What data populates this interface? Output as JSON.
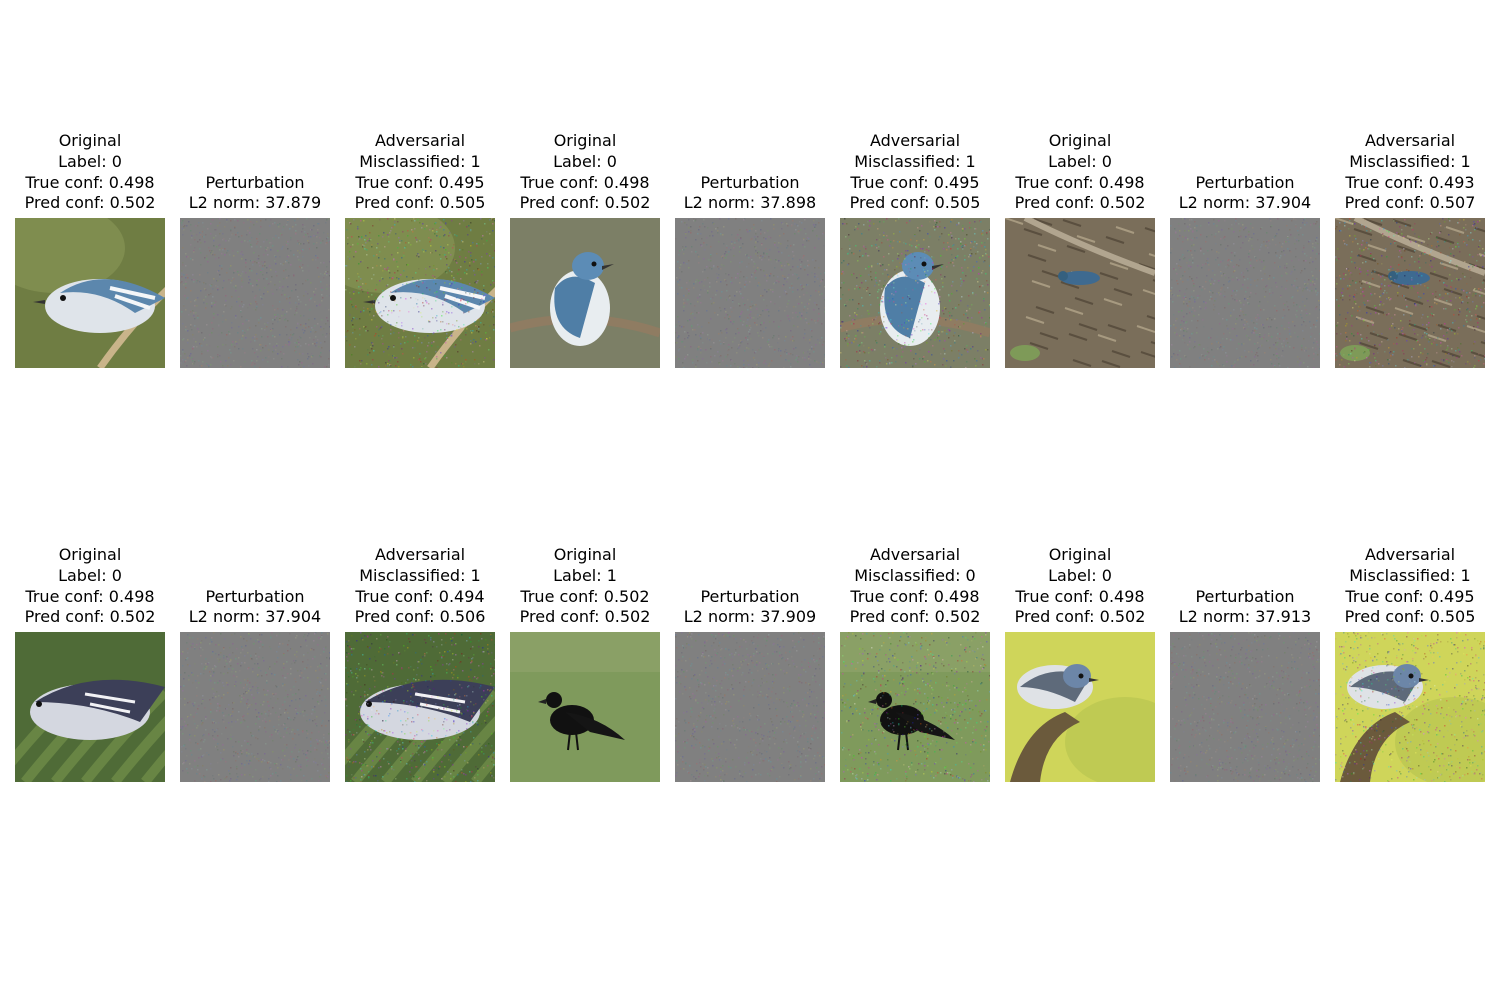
{
  "rows": [
    {
      "triplets": [
        {
          "original": {
            "lines": [
              "Original",
              "Label: 0",
              "True conf: 0.498",
              "Pred conf: 0.502"
            ],
            "scene": "warbler-branch-left"
          },
          "perturbation": {
            "lines": [
              "Perturbation",
              "L2 norm: 37.879"
            ]
          },
          "adversarial": {
            "lines": [
              "Adversarial",
              "Misclassified: 1",
              "True conf: 0.495",
              "Pred conf: 0.505"
            ],
            "scene": "warbler-branch-left"
          }
        },
        {
          "original": {
            "lines": [
              "Original",
              "Label: 0",
              "True conf: 0.498",
              "Pred conf: 0.502"
            ],
            "scene": "warbler-perched-twig"
          },
          "perturbation": {
            "lines": [
              "Perturbation",
              "L2 norm: 37.898"
            ]
          },
          "adversarial": {
            "lines": [
              "Adversarial",
              "Misclassified: 1",
              "True conf: 0.495",
              "Pred conf: 0.505"
            ],
            "scene": "warbler-perched-twig"
          }
        },
        {
          "original": {
            "lines": [
              "Original",
              "Label: 0",
              "True conf: 0.498",
              "Pred conf: 0.502"
            ],
            "scene": "warbler-forest-floor"
          },
          "perturbation": {
            "lines": [
              "Perturbation",
              "L2 norm: 37.904"
            ]
          },
          "adversarial": {
            "lines": [
              "Adversarial",
              "Misclassified: 1",
              "True conf: 0.493",
              "Pred conf: 0.507"
            ],
            "scene": "warbler-forest-floor"
          }
        }
      ]
    },
    {
      "triplets": [
        {
          "original": {
            "lines": [
              "Original",
              "Label: 0",
              "True conf: 0.498",
              "Pred conf: 0.502"
            ],
            "scene": "warbler-leaves"
          },
          "perturbation": {
            "lines": [
              "Perturbation",
              "L2 norm: 37.904"
            ]
          },
          "adversarial": {
            "lines": [
              "Adversarial",
              "Misclassified: 1",
              "True conf: 0.494",
              "Pred conf: 0.506"
            ],
            "scene": "warbler-leaves"
          }
        },
        {
          "original": {
            "lines": [
              "Original",
              "Label: 1",
              "True conf: 0.502",
              "Pred conf: 0.502"
            ],
            "scene": "crow-grass"
          },
          "perturbation": {
            "lines": [
              "Perturbation",
              "L2 norm: 37.909"
            ]
          },
          "adversarial": {
            "lines": [
              "Adversarial",
              "Misclassified: 0",
              "True conf: 0.498",
              "Pred conf: 0.502"
            ],
            "scene": "crow-grass"
          }
        },
        {
          "original": {
            "lines": [
              "Original",
              "Label: 0",
              "True conf: 0.498",
              "Pred conf: 0.502"
            ],
            "scene": "warbler-yellow-bg"
          },
          "perturbation": {
            "lines": [
              "Perturbation",
              "L2 norm: 37.913"
            ]
          },
          "adversarial": {
            "lines": [
              "Adversarial",
              "Misclassified: 1",
              "True conf: 0.495",
              "Pred conf: 0.505"
            ],
            "scene": "warbler-yellow-bg"
          }
        }
      ]
    }
  ]
}
